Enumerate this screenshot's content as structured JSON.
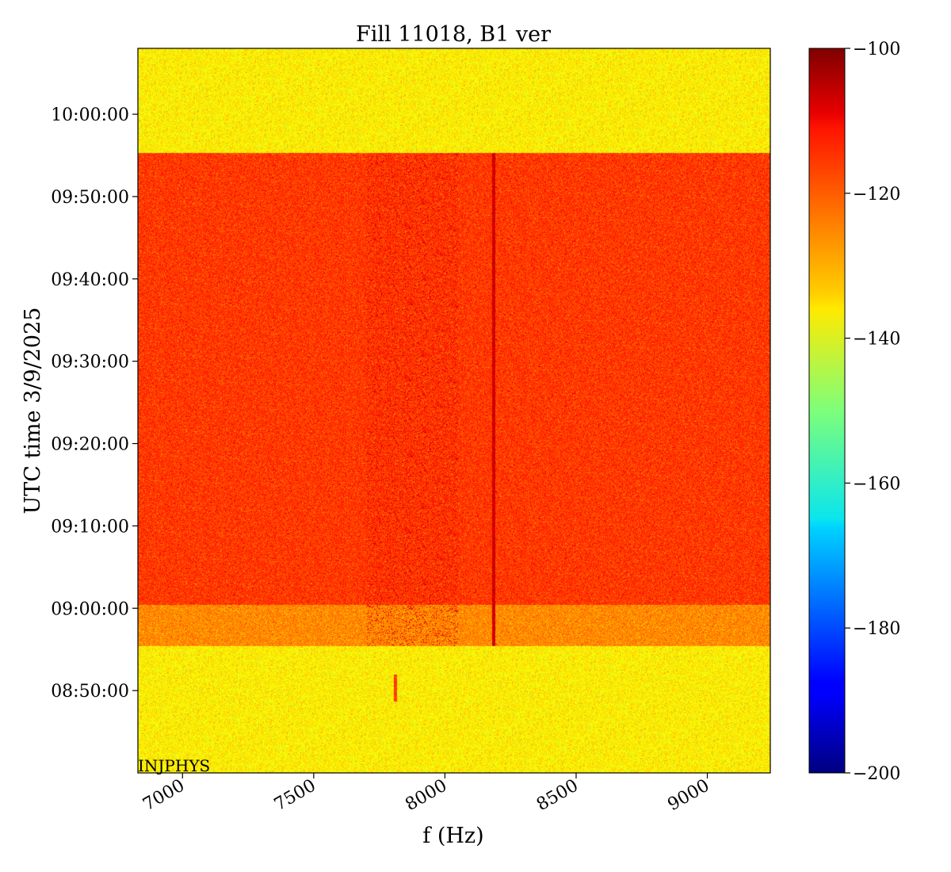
{
  "chart_data": {
    "type": "heatmap",
    "title": "Fill 11018, B1 ver",
    "xlabel": "f (Hz)",
    "ylabel": "UTC time 3/9/2025",
    "xlim": [
      6830,
      9240
    ],
    "ylim_time": [
      "08:40:00",
      "10:08:00"
    ],
    "x_ticks": [
      7000,
      7500,
      8000,
      8500,
      9000
    ],
    "x_tick_labels": [
      "7000",
      "7500",
      "8000",
      "8500",
      "9000"
    ],
    "y_ticks": [
      "08:50:00",
      "09:00:00",
      "09:10:00",
      "09:20:00",
      "09:30:00",
      "09:40:00",
      "09:50:00",
      "10:00:00"
    ],
    "colorbar": {
      "colormap": "jet",
      "vmin": -200,
      "vmax": -100,
      "ticks": [
        -100,
        -120,
        -140,
        -160,
        -180,
        -200
      ],
      "tick_labels": [
        "−100",
        "−120",
        "−140",
        "−160",
        "−180",
        "−200"
      ]
    },
    "bands": [
      {
        "from": "08:40:00",
        "to": "08:55:30",
        "mean_db": -136
      },
      {
        "from": "08:55:30",
        "to": "09:00:30",
        "mean_db": -126
      },
      {
        "from": "09:00:30",
        "to": "09:55:20",
        "mean_db": -118
      },
      {
        "from": "09:55:20",
        "to": "10:08:00",
        "mean_db": -136
      }
    ],
    "features": [
      {
        "kind": "line",
        "f": 8185,
        "from": "08:55:30",
        "to": "09:55:20",
        "mean_db": -108
      },
      {
        "kind": "region",
        "f_from": 7700,
        "f_to": 8050,
        "from": "08:55:30",
        "to": "09:55:20",
        "mean_db": -110
      },
      {
        "kind": "line",
        "f": 7810,
        "from": "08:48:40",
        "to": "08:52:00",
        "mean_db": -118
      }
    ],
    "annotation": "INJPHYS"
  }
}
